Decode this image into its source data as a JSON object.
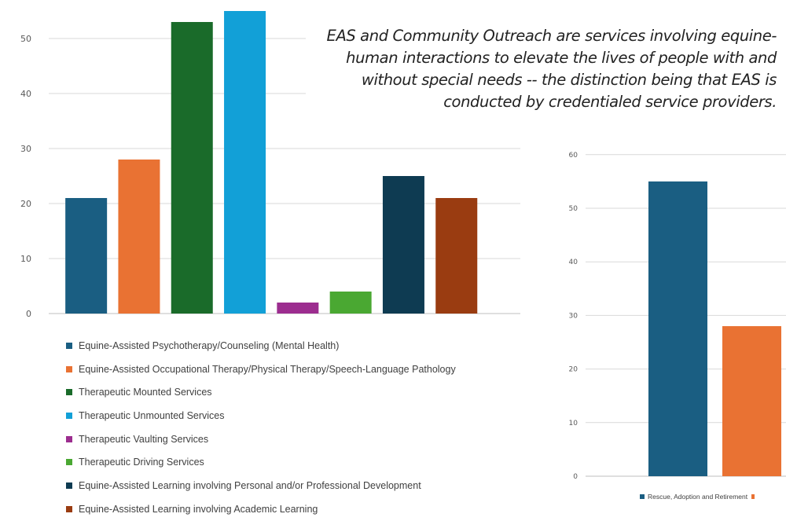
{
  "caption": {
    "text": "EAS and Community Outreach are services involving equine-human interactions to elevate the lives of people with and without special needs -- the distinction being that EAS is conducted by credentialed service providers."
  },
  "chart_data": [
    {
      "type": "bar",
      "categories": [
        "Equine-Assisted Psychotherapy/Counseling (Mental Health)",
        "Equine-Assisted Occupational Therapy/Physical Therapy/Speech-Language Pathology",
        "Therapeutic Mounted Services",
        "Therapeutic Unmounted Services",
        "Therapeutic Vaulting Services",
        "Therapeutic Driving Services",
        "Equine-Assisted Learning involving Personal and/or Professional Development",
        "Equine-Assisted Learning involving Academic Learning"
      ],
      "values": [
        21,
        28,
        53,
        55,
        2,
        4,
        25,
        21
      ],
      "colors": [
        "#1a5e82",
        "#e97233",
        "#1a6b2a",
        "#12a0d7",
        "#9c2d8f",
        "#4aa832",
        "#0e3b52",
        "#9a3c11"
      ],
      "yticks": [
        0,
        10,
        20,
        30,
        40,
        50
      ],
      "ylim": [
        0,
        55
      ],
      "legend": "bottom",
      "grid": true
    },
    {
      "type": "bar",
      "categories": [
        "Rescue, Adoption and Retirement",
        ""
      ],
      "values": [
        55,
        28
      ],
      "colors": [
        "#1a5e82",
        "#e97233"
      ],
      "yticks": [
        0,
        10,
        20,
        30,
        40,
        50,
        60
      ],
      "ylim": [
        0,
        60
      ],
      "legend": "bottom",
      "grid": true
    }
  ]
}
